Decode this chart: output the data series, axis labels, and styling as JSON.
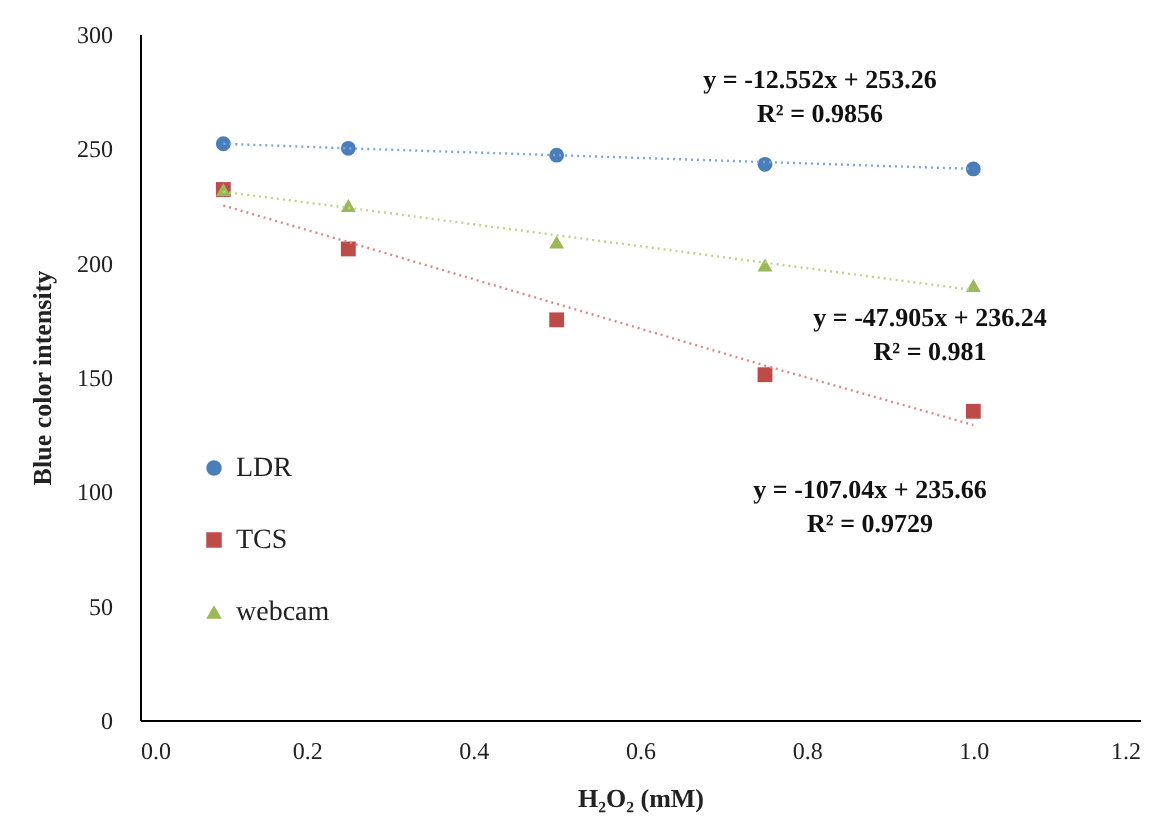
{
  "chart_data": {
    "type": "scatter",
    "xlabel": "H₂O₂ (mM)",
    "ylabel": "Blue color intensity",
    "xlim": [
      0,
      1.2
    ],
    "xticks": [
      {
        "value": 0,
        "label": "0.0"
      },
      {
        "value": 0.2,
        "label": "0.2"
      },
      {
        "value": 0.4,
        "label": "0.4"
      },
      {
        "value": 0.6,
        "label": "0.6"
      },
      {
        "value": 0.8,
        "label": "0.8"
      },
      {
        "value": 1.0,
        "label": "1.0"
      },
      {
        "value": 1.2,
        "label": "1.2"
      }
    ],
    "ylim": [
      0,
      300
    ],
    "yticks": [
      0,
      50,
      100,
      150,
      200,
      250,
      300
    ],
    "grid": false,
    "legend": "left",
    "x": [
      0.1,
      0.25,
      0.5,
      0.75,
      1.0
    ],
    "series": [
      {
        "name": "LDR",
        "color": "#4a7ebb",
        "marker": "circle",
        "values": [
          252,
          250,
          247,
          243,
          241
        ]
      },
      {
        "name": "TCS",
        "color": "#be4b48",
        "marker": "square",
        "values": [
          232,
          206,
          175,
          151,
          135
        ]
      },
      {
        "name": "webcam",
        "color": "#98b954",
        "marker": "triangle",
        "values": [
          232,
          225,
          209,
          199,
          190
        ]
      },
      {
        "type": "line",
        "color": "#7ea6d8",
        "line_style": "dotted",
        "marker": "none",
        "values": [
          252,
          250,
          247,
          244,
          241
        ]
      },
      {
        "type": "line",
        "color": "#d98a88",
        "line_style": "dotted",
        "marker": "none",
        "values": [
          225,
          209,
          182,
          155,
          129
        ]
      },
      {
        "type": "line",
        "color": "#bcd48e",
        "line_style": "dotted",
        "marker": "none",
        "values": [
          231,
          224,
          212,
          200,
          188
        ]
      }
    ],
    "annotations": [
      "y = -12.552x + 253.26",
      "R² = 0.9856",
      "y = -47.905x + 236.24",
      "R² = 0.981",
      "y = -107.04x + 235.66",
      "R² = 0.9729"
    ]
  }
}
